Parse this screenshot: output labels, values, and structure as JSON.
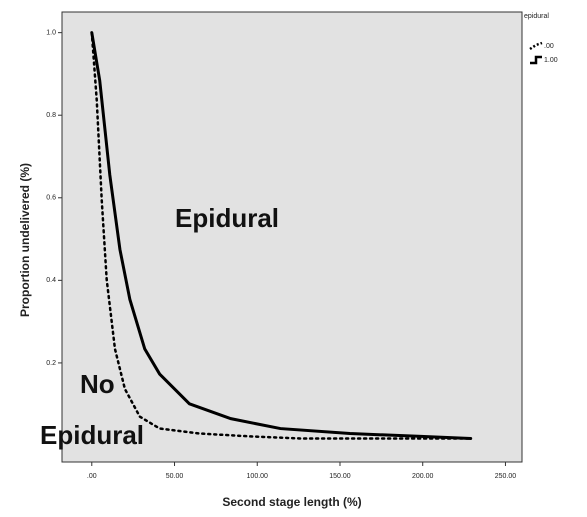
{
  "chart_data": {
    "type": "line",
    "x_label": "Second stage length (%)",
    "y_label": "Proportion undelivered (%)",
    "legend_title": "epidural",
    "series": [
      {
        "name": "1.00",
        "color": "#000000",
        "style": "solid",
        "x": [
          0,
          4.8,
          10.9,
          17,
          23,
          32,
          41,
          59,
          84,
          114,
          156,
          199,
          229
        ],
        "values": [
          1.0,
          0.884,
          0.655,
          0.475,
          0.354,
          0.234,
          0.173,
          0.101,
          0.065,
          0.041,
          0.029,
          0.022,
          0.017
        ]
      },
      {
        "name": ".00",
        "color": "#000000",
        "style": "dotted",
        "x": [
          0,
          3,
          6,
          9,
          14,
          20,
          29,
          41,
          65,
          96,
          126,
          229
        ],
        "values": [
          1.0,
          0.836,
          0.595,
          0.402,
          0.234,
          0.137,
          0.07,
          0.041,
          0.029,
          0.022,
          0.017,
          0.017
        ]
      }
    ],
    "annotations": [
      "Epidural",
      "No",
      "Epidural"
    ],
    "xlim": [
      -18,
      260
    ],
    "ylim": [
      -0.04,
      1.05
    ],
    "xticks": [
      {
        "value": 0,
        "label": ".00"
      },
      {
        "value": 50,
        "label": "50.00"
      },
      {
        "value": 100,
        "label": "100.00"
      },
      {
        "value": 150,
        "label": "150.00"
      },
      {
        "value": 200,
        "label": "200.00"
      },
      {
        "value": 250,
        "label": "250.00"
      }
    ],
    "yticks": [
      0.2,
      0.4,
      0.6,
      0.8,
      {
        "value": 1,
        "label": "1.0"
      }
    ],
    "background": "#e2e2e2"
  }
}
